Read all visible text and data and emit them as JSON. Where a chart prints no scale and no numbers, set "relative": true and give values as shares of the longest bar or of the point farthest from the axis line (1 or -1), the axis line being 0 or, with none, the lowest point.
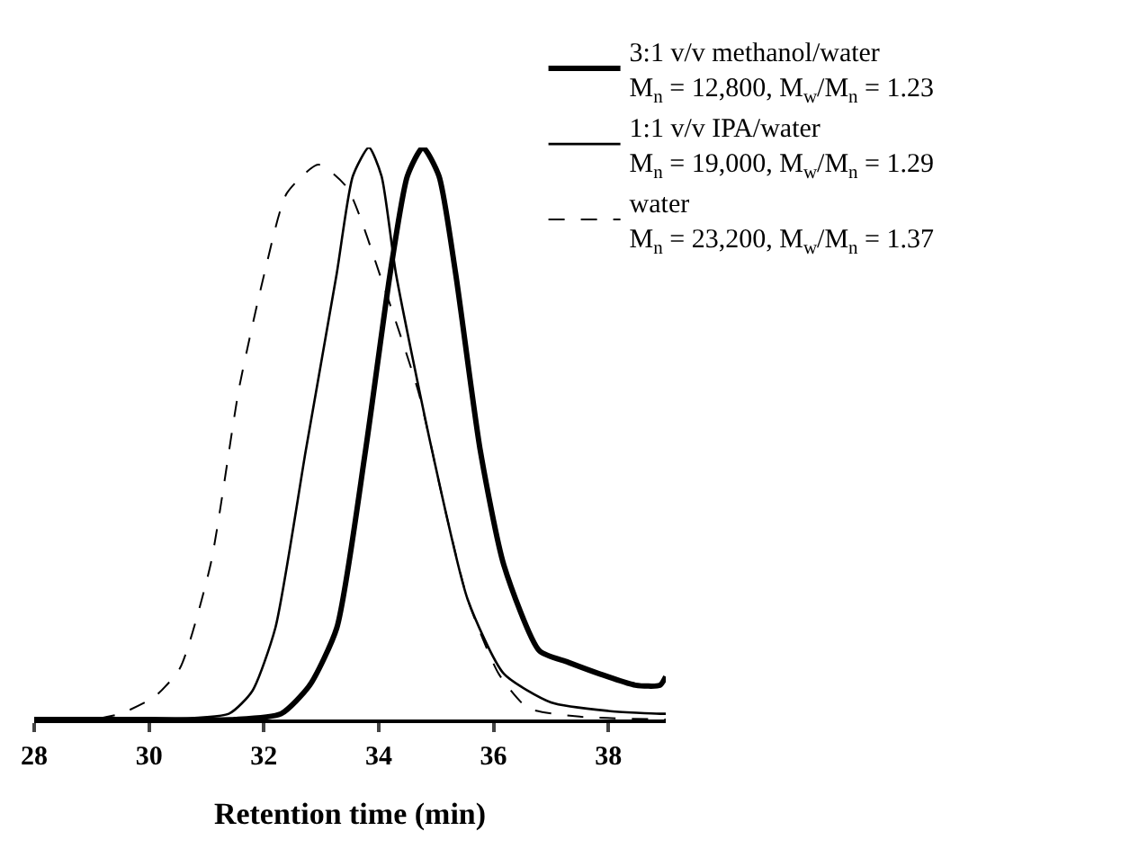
{
  "chart_data": {
    "type": "line",
    "relative": true,
    "xlabel": "Retention time (min)",
    "xlim": [
      28,
      39
    ],
    "xticks": [
      28,
      30,
      32,
      34,
      36,
      38
    ],
    "grid": false,
    "legend": "top right",
    "marker": "none",
    "series": [
      {
        "name": "3:1 v/v methanol/water\nM$_{n}$ = 12,800, M$_{w}$/M$_{n}$ = 1.23",
        "color": "#000000",
        "line_style": "solid",
        "x": [
          28,
          30,
          31.5,
          32.3,
          32.8,
          33.27,
          33.77,
          34.2,
          34.5,
          34.77,
          35.05,
          35.34,
          35.77,
          36.18,
          36.8,
          37.3,
          37.84,
          38.47,
          38.9,
          39
        ],
        "values": [
          0,
          0,
          0,
          0.01,
          0.06,
          0.16,
          0.47,
          0.78,
          0.95,
          1,
          0.95,
          0.78,
          0.47,
          0.27,
          0.12,
          0.1,
          0.08,
          0.06,
          0.06,
          0.075
        ]
      },
      {
        "name": "1:1 v/v IPA/water\nM$_{n}$ = 19,000, M$_{w}$/M$_{n}$ = 1.29",
        "color": "#000000",
        "line_style": "solid",
        "x": [
          28,
          30,
          31.39,
          31.8,
          32.2,
          32.73,
          33.27,
          33.55,
          33.83,
          34.05,
          34.3,
          34.93,
          35.55,
          36.18,
          37,
          38,
          38.9,
          39
        ],
        "values": [
          0,
          0,
          0.01,
          0.05,
          0.16,
          0.47,
          0.78,
          0.95,
          1,
          0.95,
          0.78,
          0.47,
          0.21,
          0.08,
          0.03,
          0.015,
          0.01,
          0.01
        ]
      },
      {
        "name": "water\nM$_{n}$ = 23,200, M$_{w}$/M$_{n}$ = 1.37",
        "color": "#000000",
        "line_style": "dashed",
        "x": [
          28,
          29,
          29.5,
          30.1,
          30.54,
          31.07,
          31.57,
          32.01,
          32.4,
          32.95,
          33.45,
          34.08,
          34.7,
          35.15,
          35.55,
          36.09,
          36.6,
          37.5,
          39
        ],
        "values": [
          0,
          0,
          0.01,
          0.04,
          0.09,
          0.27,
          0.58,
          0.78,
          0.92,
          0.97,
          0.93,
          0.76,
          0.57,
          0.37,
          0.21,
          0.08,
          0.02,
          0.005,
          0
        ]
      }
    ]
  }
}
